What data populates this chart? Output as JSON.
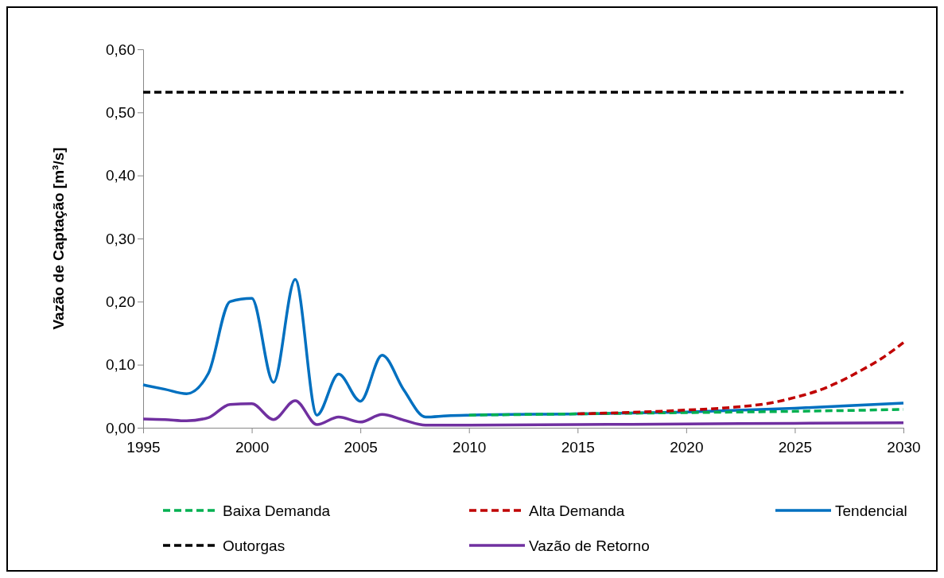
{
  "chart_data": {
    "type": "line",
    "ylabel": "Vazão de Captação [m³/s]",
    "xlim": [
      1995,
      2030
    ],
    "xticks": [
      1995,
      2000,
      2005,
      2010,
      2015,
      2020,
      2025,
      2030
    ],
    "ylim": [
      0,
      0.6
    ],
    "yticks": [
      {
        "value": 0,
        "label": "0,00"
      },
      {
        "value": 0.1,
        "label": "0,10"
      },
      {
        "value": 0.2,
        "label": "0,20"
      },
      {
        "value": 0.3,
        "label": "0,30"
      },
      {
        "value": 0.4,
        "label": "0,40"
      },
      {
        "value": 0.5,
        "label": "0,50"
      },
      {
        "value": 0.6,
        "label": "0,60"
      }
    ],
    "legend": "bottom",
    "grid": false,
    "series": [
      {
        "name": "Baixa Demanda",
        "color": "#00b050",
        "line_style": "dashed",
        "x": [
          2010,
          2015,
          2020,
          2025,
          2030
        ],
        "values": [
          0.02,
          0.022,
          0.024,
          0.026,
          0.029
        ]
      },
      {
        "name": "Alta Demanda",
        "color": "#c00000",
        "line_style": "dashed",
        "x": [
          2015,
          2020,
          2022,
          2024,
          2025,
          2026,
          2027,
          2028,
          2029,
          2030
        ],
        "values": [
          0.022,
          0.028,
          0.032,
          0.04,
          0.048,
          0.058,
          0.072,
          0.09,
          0.11,
          0.135
        ]
      },
      {
        "name": "Tendencial",
        "color": "#0070c0",
        "line_style": "solid",
        "x": [
          1995,
          1996,
          1997,
          1998,
          1999,
          2000,
          2001,
          2002,
          2003,
          2004,
          2005,
          2006,
          2007,
          2008,
          2009,
          2010,
          2015,
          2020,
          2025,
          2030
        ],
        "values": [
          0.068,
          0.061,
          0.054,
          0.086,
          0.2,
          0.205,
          0.072,
          0.235,
          0.02,
          0.085,
          0.042,
          0.115,
          0.06,
          0.017,
          0.019,
          0.02,
          0.022,
          0.025,
          0.031,
          0.039
        ]
      },
      {
        "name": "Outorgas",
        "color": "#000000",
        "line_style": "dashed",
        "x": [
          1995,
          2030
        ],
        "values": [
          0.532,
          0.532
        ]
      },
      {
        "name": "Vazão de Retorno",
        "color": "#7030a0",
        "line_style": "solid",
        "x": [
          1995,
          1996,
          1997,
          1998,
          1999,
          2000,
          2001,
          2002,
          2003,
          2004,
          2005,
          2006,
          2007,
          2008,
          2009,
          2010,
          2015,
          2020,
          2025,
          2030
        ],
        "values": [
          0.014,
          0.013,
          0.011,
          0.016,
          0.037,
          0.038,
          0.013,
          0.043,
          0.005,
          0.017,
          0.009,
          0.021,
          0.012,
          0.004,
          0.004,
          0.004,
          0.005,
          0.006,
          0.007,
          0.008
        ]
      }
    ]
  }
}
